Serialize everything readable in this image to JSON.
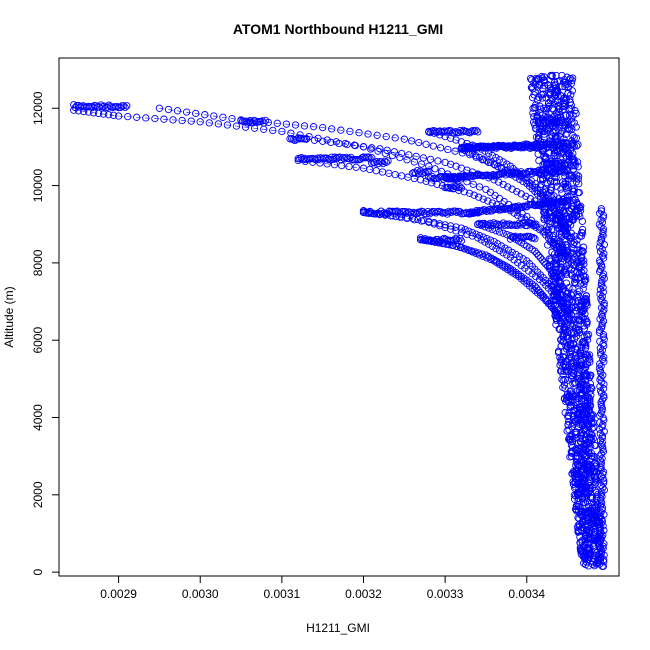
{
  "chart_data": {
    "type": "scatter",
    "title": "ATOM1 Northbound H1211_GMI",
    "xlabel": "H1211_GMI",
    "ylabel": "Altitude (m)",
    "xlim": [
      0.002827,
      0.003513
    ],
    "ylim": [
      -100,
      13300
    ],
    "x_ticks": [
      "0.0029",
      "0.0030",
      "0.0031",
      "0.0032",
      "0.0033",
      "0.0034"
    ],
    "x_tick_values": [
      0.0029,
      0.003,
      0.0031,
      0.0032,
      0.0033,
      0.0034
    ],
    "y_ticks": [
      "0",
      "2000",
      "4000",
      "6000",
      "8000",
      "10000",
      "12000"
    ],
    "y_tick_values": [
      0,
      2000,
      4000,
      6000,
      8000,
      10000,
      12000
    ],
    "grid": false,
    "marker": "open-circle",
    "color": "#0000ff",
    "series": [
      {
        "profiles": [
          {
            "top_x": 0.002845,
            "top_y": 12050,
            "x": [
              0.002845,
              0.0029,
              0.003,
              0.0031,
              0.0032,
              0.00328,
              0.00335,
              0.0034,
              0.00345
            ],
            "y": [
              11950,
              11800,
              11650,
              11400,
              11000,
              10500,
              9900,
              9200,
              8300
            ]
          },
          {
            "top_x": 0.00295,
            "top_y": 12000,
            "x": [
              0.00295,
              0.00305,
              0.00315,
              0.00325,
              0.00333,
              0.0034,
              0.00345
            ],
            "y": [
              12000,
              11700,
              11500,
              11200,
              10800,
              10200,
              9500
            ]
          },
          {
            "top_x": 0.00312,
            "top_y": 10650,
            "x": [
              0.00312,
              0.0032,
              0.00327,
              0.00333,
              0.00338,
              0.00342,
              0.00345
            ],
            "y": [
              10650,
              10450,
              10150,
              9800,
              9350,
              8800,
              8100
            ]
          },
          {
            "top_x": 0.00313,
            "top_y": 11200,
            "x": [
              0.00313,
              0.00322,
              0.0033,
              0.00336,
              0.00341,
              0.00345
            ],
            "y": [
              11200,
              10950,
              10600,
              10150,
              9600,
              8900
            ]
          },
          {
            "top_x": 0.0032,
            "top_y": 9300,
            "x": [
              0.0032,
              0.00326,
              0.00332,
              0.00336,
              0.0034,
              0.00343,
              0.00345
            ],
            "y": [
              9300,
              9150,
              8900,
              8550,
              8050,
              7400,
              6700
            ]
          },
          {
            "top_x": 0.0032,
            "top_y": 9350,
            "x": [
              0.0032,
              0.00328,
              0.00334,
              0.00338,
              0.00342,
              0.00345
            ],
            "y": [
              9350,
              9050,
              8650,
              8150,
              7500,
              6800
            ]
          },
          {
            "top_x": 0.00327,
            "top_y": 8600,
            "x": [
              0.00327,
              0.00331,
              0.00335,
              0.00338,
              0.00341,
              0.00343,
              0.00345
            ],
            "y": [
              8600,
              8450,
              8200,
              7850,
              7400,
              6900,
              6200
            ]
          },
          {
            "top_x": 0.00327,
            "top_y": 8650,
            "x": [
              0.00327,
              0.00332,
              0.00336,
              0.00339,
              0.00342,
              0.00345
            ],
            "y": [
              8650,
              8400,
              8050,
              7650,
              7100,
              6400
            ]
          },
          {
            "top_x": 0.00328,
            "top_y": 11400,
            "x": [
              0.00328,
              0.00334,
              0.00338,
              0.00341,
              0.00344,
              0.00345
            ],
            "y": [
              11400,
              11000,
              10500,
              9950,
              9300,
              8700
            ]
          },
          {
            "top_x": 0.00332,
            "top_y": 10950,
            "x": [
              0.00332,
              0.00336,
              0.0034,
              0.00343,
              0.00345
            ],
            "y": [
              10950,
              10550,
              10050,
              9450,
              8900
            ]
          },
          {
            "top_x": 0.00334,
            "top_y": 9000,
            "x": [
              0.00334,
              0.00338,
              0.00341,
              0.00343,
              0.00345
            ],
            "y": [
              9000,
              8700,
              8300,
              7800,
              7200
            ]
          }
        ],
        "plateaus": [
          {
            "x": [
              0.002845,
              0.00291
            ],
            "y": 12050
          },
          {
            "x": [
              0.00305,
              0.00308
            ],
            "y": 11650
          },
          {
            "x": [
              0.00311,
              0.00313
            ],
            "y": 11200
          },
          {
            "x": [
              0.00312,
              0.00321
            ],
            "y": 10700
          },
          {
            "x": [
              0.00321,
              0.00323
            ],
            "y": 10600
          },
          {
            "x": [
              0.00326,
              0.00328
            ],
            "y": 10350
          },
          {
            "x": [
              0.00328,
              0.00332
            ],
            "y": 10200
          },
          {
            "x": [
              0.00328,
              0.00334
            ],
            "y": 11400
          },
          {
            "x": [
              0.0033,
              0.00332
            ],
            "y": 9950
          },
          {
            "x": [
              0.0032,
              0.00334
            ],
            "y": 9300
          },
          {
            "x": [
              0.00327,
              0.00332
            ],
            "y": 8600
          },
          {
            "x": [
              0.00332,
              0.00342
            ],
            "y": 11000
          },
          {
            "x": [
              0.00334,
              0.00341
            ],
            "y": 9000
          },
          {
            "x": [
              0.00338,
              0.00341
            ],
            "y": 8650
          },
          {
            "x": [
              0.00342,
              0.00345
            ],
            "y": 11650
          },
          {
            "x": [
              0.00342,
              0.00345
            ],
            "y": 10550
          }
        ],
        "slants": [
          {
            "x": [
              0.00333,
              0.00345
            ],
            "y": [
              9300,
              9600
            ]
          },
          {
            "x": [
              0.00332,
              0.00345
            ],
            "y": [
              10950,
              11100
            ]
          },
          {
            "x": [
              0.0033,
              0.00345
            ],
            "y": [
              10200,
              10400
            ]
          }
        ],
        "column": {
          "x_min": 0.0034,
          "x_max": 0.003495,
          "y_min": 150,
          "y_max": 12850,
          "top_x": 0.00343,
          "bottom_x": 0.00348
        }
      }
    ]
  }
}
